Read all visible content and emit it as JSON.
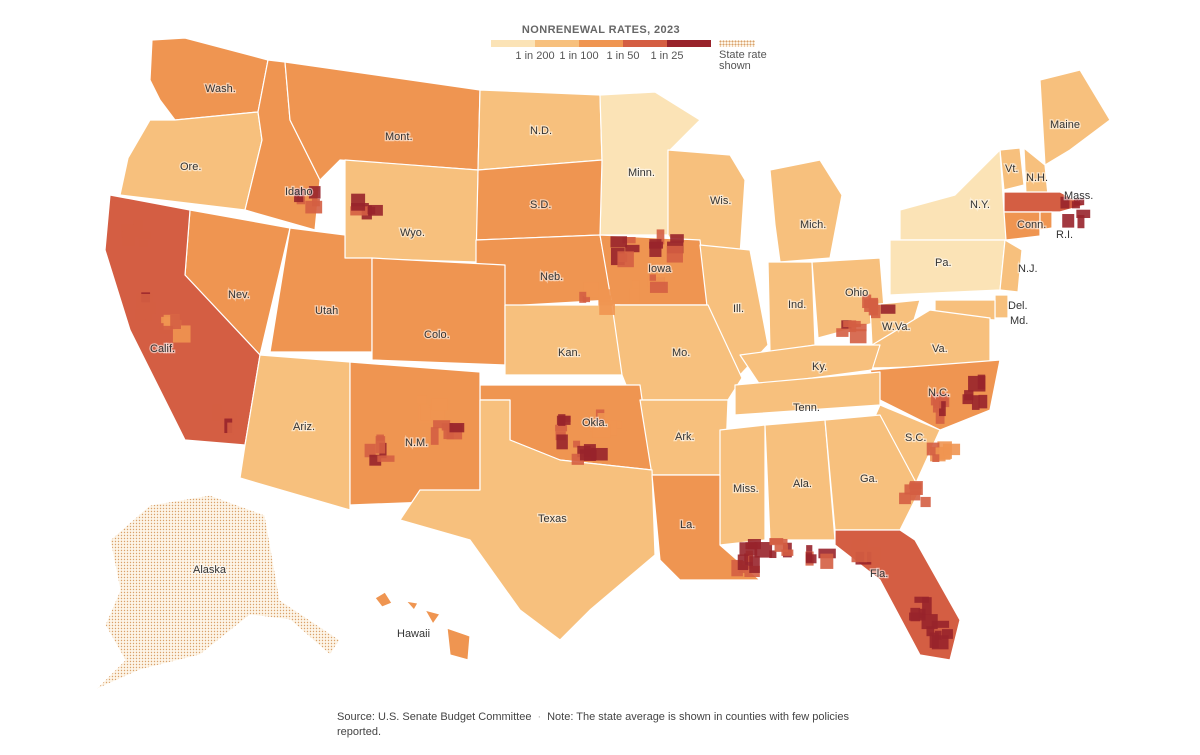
{
  "legend": {
    "title": "NONRENEWAL RATES, 2023",
    "ticks": [
      "1 in 200",
      "1 in 100",
      "1 in 50",
      "1 in 25"
    ],
    "hatch_label": "State rate shown",
    "colors": [
      "#fbe3b6",
      "#f7c07d",
      "#ef9551",
      "#d45e43",
      "#98232b"
    ]
  },
  "states": [
    {
      "label": "Wash.",
      "tone": 2
    },
    {
      "label": "Ore.",
      "tone": 1
    },
    {
      "label": "Idaho",
      "tone": 2
    },
    {
      "label": "Mont.",
      "tone": 2
    },
    {
      "label": "N.D.",
      "tone": 1
    },
    {
      "label": "Minn.",
      "tone": 0
    },
    {
      "label": "Wis.",
      "tone": 1
    },
    {
      "label": "Mich.",
      "tone": 1
    },
    {
      "label": "Maine",
      "tone": 1
    },
    {
      "label": "Vt.",
      "tone": 1
    },
    {
      "label": "N.H.",
      "tone": 1
    },
    {
      "label": "Mass.",
      "tone": 3
    },
    {
      "label": "N.Y.",
      "tone": 0
    },
    {
      "label": "Conn.",
      "tone": 2
    },
    {
      "label": "R.I.",
      "tone": 2
    },
    {
      "label": "Pa.",
      "tone": 0
    },
    {
      "label": "N.J.",
      "tone": 1
    },
    {
      "label": "Del.",
      "tone": 1
    },
    {
      "label": "Md.",
      "tone": 1
    },
    {
      "label": "S.D.",
      "tone": 2
    },
    {
      "label": "Wyo.",
      "tone": 1
    },
    {
      "label": "Neb.",
      "tone": 2
    },
    {
      "label": "Iowa",
      "tone": 2
    },
    {
      "label": "Nev.",
      "tone": 2
    },
    {
      "label": "Utah",
      "tone": 2
    },
    {
      "label": "Colo.",
      "tone": 2
    },
    {
      "label": "Ill.",
      "tone": 1
    },
    {
      "label": "Ind.",
      "tone": 1
    },
    {
      "label": "Ohio",
      "tone": 1
    },
    {
      "label": "W.Va.",
      "tone": 1
    },
    {
      "label": "Va.",
      "tone": 1
    },
    {
      "label": "Calif.",
      "tone": 3
    },
    {
      "label": "Kan.",
      "tone": 1
    },
    {
      "label": "Mo.",
      "tone": 1
    },
    {
      "label": "Ky.",
      "tone": 1
    },
    {
      "label": "N.C.",
      "tone": 2
    },
    {
      "label": "Tenn.",
      "tone": 1
    },
    {
      "label": "Okla.",
      "tone": 2
    },
    {
      "label": "Ark.",
      "tone": 1
    },
    {
      "label": "S.C.",
      "tone": 1
    },
    {
      "label": "Ariz.",
      "tone": 1
    },
    {
      "label": "N.M.",
      "tone": 2
    },
    {
      "label": "Miss.",
      "tone": 1
    },
    {
      "label": "Ala.",
      "tone": 1
    },
    {
      "label": "Ga.",
      "tone": 1
    },
    {
      "label": "Texas",
      "tone": 1
    },
    {
      "label": "La.",
      "tone": 2
    },
    {
      "label": "Fla.",
      "tone": 3
    },
    {
      "label": "Alaska",
      "tone": -1
    },
    {
      "label": "Hawaii",
      "tone": 2
    }
  ],
  "footer": {
    "source": "Source: U.S. Senate Budget Committee",
    "separator": "·",
    "note": "Note: The state average is shown in counties with few policies reported."
  }
}
